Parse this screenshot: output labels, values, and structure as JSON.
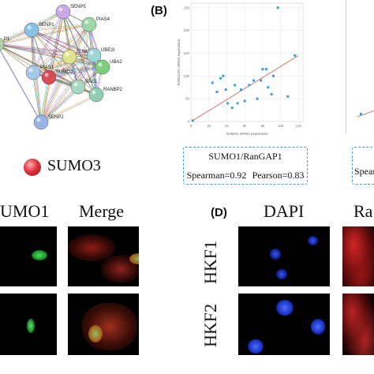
{
  "panel_a": {
    "network_nodes": [
      {
        "label": "SENP5",
        "color": "#c9a8e8"
      },
      {
        "label": "PIAS4",
        "color": "#9cd8a8"
      },
      {
        "label": "SENP1",
        "color": "#88c0e8"
      },
      {
        "label": "P1",
        "color": "#b0d0a8"
      },
      {
        "label": "SUMO2",
        "color": "#dfe58c"
      },
      {
        "label": "UBE2I",
        "color": "#9ad5d8"
      },
      {
        "label": "UBA2",
        "color": "#7cd07c"
      },
      {
        "label": "PIAS1",
        "color": "#a8c8e8"
      },
      {
        "label": "SUMO3",
        "color": "#d94a55"
      },
      {
        "label": "RANBP2",
        "color": "#8fcfb0"
      },
      {
        "label": "SAE1",
        "color": "#a8d8c0"
      },
      {
        "label": "SENP2",
        "color": "#9ab4e8"
      }
    ],
    "legend_label": "SUMO3",
    "legend_color": "#d32f3a"
  },
  "panel_b": {
    "label": "(B)",
    "box_title": "SUMO1/RanGAP1",
    "spearman": "Spearman=0.92",
    "pearson": "Pearson=0.83",
    "right_box_partial": "Spear"
  },
  "chart_data": {
    "type": "scatter",
    "title": "",
    "xlabel": "SUMO1 mRNA expression",
    "ylabel": "RANGAP1 mRNA expression",
    "x_ticks": [
      "0",
      "2k",
      "4k",
      "6k",
      "8k",
      "10k",
      "12k"
    ],
    "y_ticks": [
      "0",
      "50",
      "100",
      "150",
      "200",
      "250"
    ],
    "xlim": [
      0,
      12.5
    ],
    "ylim": [
      0,
      260
    ],
    "grid": true,
    "points": [
      {
        "x": 0.2,
        "y": 2
      },
      {
        "x": 2.4,
        "y": 85
      },
      {
        "x": 2.9,
        "y": 65
      },
      {
        "x": 3.3,
        "y": 95
      },
      {
        "x": 3.6,
        "y": 100
      },
      {
        "x": 3.9,
        "y": 70
      },
      {
        "x": 4.1,
        "y": 40
      },
      {
        "x": 4.6,
        "y": 30
      },
      {
        "x": 4.9,
        "y": 80
      },
      {
        "x": 5.2,
        "y": 40
      },
      {
        "x": 5.6,
        "y": 70
      },
      {
        "x": 6.0,
        "y": 45
      },
      {
        "x": 6.5,
        "y": 80
      },
      {
        "x": 7.0,
        "y": 90
      },
      {
        "x": 7.4,
        "y": 50
      },
      {
        "x": 7.8,
        "y": 90
      },
      {
        "x": 8.0,
        "y": 115
      },
      {
        "x": 8.4,
        "y": 115
      },
      {
        "x": 8.6,
        "y": 75
      },
      {
        "x": 9.0,
        "y": 60
      },
      {
        "x": 9.7,
        "y": 250
      },
      {
        "x": 11.6,
        "y": 145
      },
      {
        "x": 10.8,
        "y": 55
      },
      {
        "x": 9.2,
        "y": 100
      }
    ],
    "fit_line": {
      "x0": 0.2,
      "y0": 2,
      "x1": 12.0,
      "y1": 145
    },
    "point_color": "#3aa0d8",
    "line_color": "#d9786a"
  },
  "panel_c": {
    "col_left_label": "UMO1",
    "col_right_label": "Merge"
  },
  "panel_d": {
    "label": "(D)",
    "col_left_label": "DAPI",
    "col_right_label": "Ra",
    "row1_label": "HKF1",
    "row2_label": "HKF2"
  }
}
